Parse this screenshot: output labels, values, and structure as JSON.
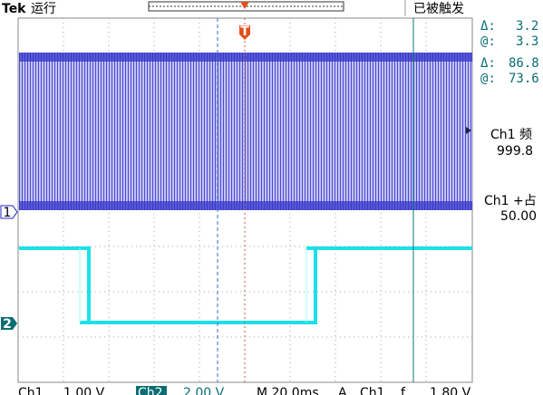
{
  "header": {
    "brand": "Tek",
    "status": "运行",
    "trigger_state": "已被触发",
    "trigger_marker": "T"
  },
  "readouts": [
    {
      "label": "Δ:",
      "value": "3.2"
    },
    {
      "label": "@:",
      "value": "3.3"
    },
    {
      "label": "Δ:",
      "value": "86.8"
    },
    {
      "label": "@:",
      "value": "73.6"
    }
  ],
  "measurements": [
    {
      "label": "Ch1 频",
      "value": "999.8"
    },
    {
      "label": "Ch1 +占",
      "value": "50.00"
    }
  ],
  "channel_markers": [
    "1",
    "2"
  ],
  "footer": {
    "ch1": "Ch1",
    "ch1_scale": "1.00 V",
    "ch2": "Ch2",
    "ch2_scale": "2.00 V",
    "timebase": "M 20.0ms",
    "trigger_mode": "A",
    "trigger_source": "Ch1",
    "trigger_slope": "ƒ",
    "trigger_level": "1.80 V"
  }
}
